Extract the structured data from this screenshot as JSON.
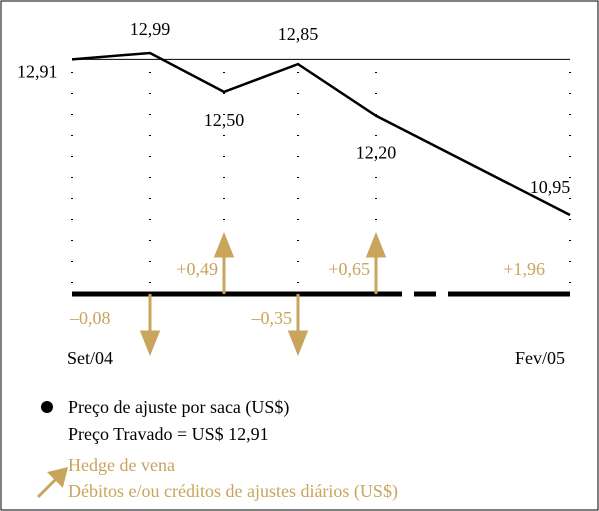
{
  "chart_data": {
    "type": "line",
    "categories": [
      "Set/04",
      null,
      null,
      null,
      null,
      "Fev/05"
    ],
    "series": [
      {
        "name": "Preço de ajuste por saca (US$)",
        "color": "#000000",
        "values": [
          12.91,
          12.99,
          12.5,
          12.85,
          12.2,
          10.95
        ],
        "value_labels": [
          "12,91",
          "12,99",
          "12,50",
          "12,85",
          "12,20",
          "10,95"
        ]
      }
    ],
    "locked_price": 12.91,
    "locked_price_label": "Preço Travado = US$ 12,91",
    "adjustments": {
      "name": "Hedge de vena",
      "description": "Débitos e/ou créditos de ajustes diários (US$)",
      "color": "#c9a45c",
      "values": [
        null,
        -0.08,
        0.49,
        -0.35,
        0.65,
        1.96
      ],
      "value_labels": [
        null,
        "–0,08",
        "+0,49",
        "–0,35",
        "+0,65",
        "+1,96"
      ]
    }
  }
}
